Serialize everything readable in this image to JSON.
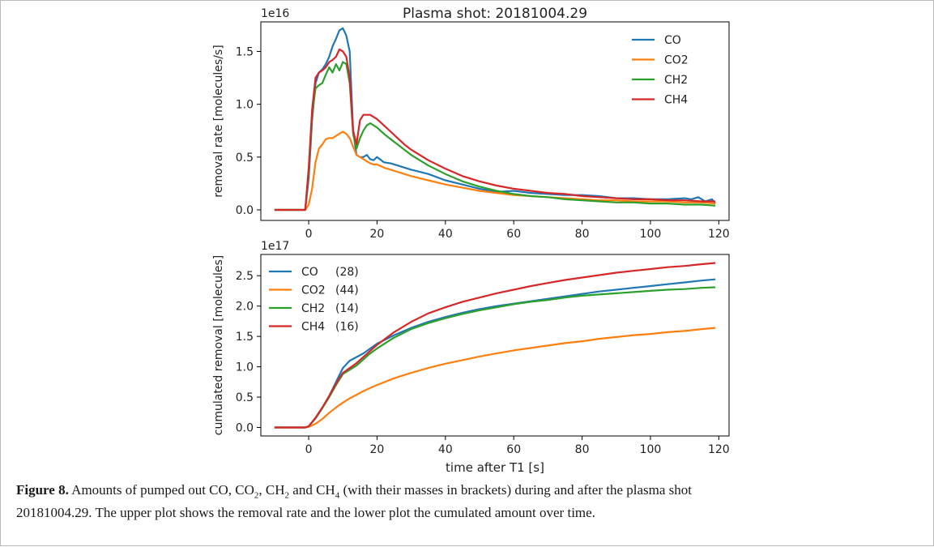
{
  "chart_data": [
    {
      "type": "line",
      "title": "Plasma shot: 20181004.29",
      "xlabel": "",
      "ylabel": "removal rate [molecules/s]",
      "y_offset_label": "1e16",
      "xlim": [
        -14,
        123
      ],
      "ylim": [
        -0.1,
        1.78
      ],
      "xticks": [
        0,
        20,
        40,
        60,
        80,
        100,
        120
      ],
      "yticks": [
        0.0,
        0.5,
        1.0,
        1.5
      ],
      "ytick_labels": [
        "0.0",
        "0.5",
        "1.0",
        "1.5"
      ],
      "legend_position": "top-right",
      "series": [
        {
          "name": "CO",
          "color": "#1f77b4",
          "x": [
            -10,
            -1,
            0,
            1,
            2,
            3,
            4,
            5,
            6,
            7,
            8,
            9,
            10,
            11,
            12,
            13,
            14,
            15,
            16,
            17,
            18,
            19,
            20,
            22,
            24,
            26,
            28,
            30,
            35,
            40,
            45,
            50,
            55,
            60,
            65,
            70,
            75,
            80,
            85,
            90,
            95,
            100,
            105,
            110,
            112,
            114,
            116,
            118,
            119
          ],
          "y": [
            0,
            0,
            0.3,
            0.85,
            1.2,
            1.3,
            1.33,
            1.38,
            1.45,
            1.55,
            1.62,
            1.7,
            1.72,
            1.65,
            1.5,
            0.75,
            0.52,
            0.5,
            0.5,
            0.52,
            0.48,
            0.47,
            0.5,
            0.45,
            0.44,
            0.42,
            0.4,
            0.38,
            0.34,
            0.28,
            0.24,
            0.2,
            0.17,
            0.18,
            0.16,
            0.15,
            0.14,
            0.14,
            0.13,
            0.11,
            0.11,
            0.1,
            0.1,
            0.11,
            0.1,
            0.12,
            0.08,
            0.1,
            0.06
          ]
        },
        {
          "name": "CO2",
          "color": "#ff7f0e",
          "x": [
            -10,
            -1,
            0,
            1,
            2,
            3,
            4,
            5,
            6,
            7,
            8,
            9,
            10,
            11,
            12,
            13,
            14,
            15,
            16,
            17,
            18,
            19,
            20,
            22,
            24,
            26,
            28,
            30,
            35,
            40,
            45,
            50,
            55,
            60,
            65,
            70,
            75,
            80,
            85,
            90,
            95,
            100,
            105,
            110,
            115,
            119
          ],
          "y": [
            0,
            0,
            0.05,
            0.2,
            0.45,
            0.58,
            0.62,
            0.67,
            0.68,
            0.68,
            0.7,
            0.72,
            0.74,
            0.72,
            0.68,
            0.6,
            0.52,
            0.5,
            0.48,
            0.46,
            0.44,
            0.43,
            0.43,
            0.4,
            0.38,
            0.36,
            0.34,
            0.32,
            0.28,
            0.24,
            0.21,
            0.18,
            0.16,
            0.14,
            0.13,
            0.12,
            0.11,
            0.1,
            0.09,
            0.09,
            0.08,
            0.08,
            0.08,
            0.07,
            0.07,
            0.06
          ]
        },
        {
          "name": "CH2",
          "color": "#2ca02c",
          "x": [
            -10,
            -1,
            0,
            1,
            2,
            3,
            4,
            5,
            6,
            7,
            8,
            9,
            10,
            11,
            12,
            13,
            14,
            15,
            16,
            17,
            18,
            19,
            20,
            22,
            24,
            26,
            28,
            30,
            35,
            40,
            45,
            50,
            55,
            60,
            65,
            70,
            75,
            80,
            85,
            90,
            95,
            100,
            105,
            110,
            115,
            119
          ],
          "y": [
            0,
            0,
            0.35,
            0.9,
            1.15,
            1.18,
            1.2,
            1.28,
            1.35,
            1.3,
            1.38,
            1.32,
            1.4,
            1.38,
            1.2,
            0.72,
            0.58,
            0.68,
            0.75,
            0.8,
            0.82,
            0.8,
            0.78,
            0.72,
            0.67,
            0.62,
            0.57,
            0.52,
            0.42,
            0.34,
            0.27,
            0.22,
            0.18,
            0.15,
            0.13,
            0.12,
            0.1,
            0.09,
            0.08,
            0.07,
            0.07,
            0.06,
            0.06,
            0.05,
            0.05,
            0.04
          ]
        },
        {
          "name": "CH4",
          "color": "#d62728",
          "x": [
            -10,
            -1,
            0,
            1,
            2,
            3,
            4,
            5,
            6,
            7,
            8,
            9,
            10,
            11,
            12,
            13,
            14,
            15,
            16,
            17,
            18,
            19,
            20,
            22,
            24,
            26,
            28,
            30,
            35,
            40,
            45,
            50,
            55,
            60,
            65,
            70,
            75,
            80,
            85,
            90,
            95,
            100,
            105,
            110,
            115,
            119
          ],
          "y": [
            0,
            0,
            0.4,
            0.95,
            1.25,
            1.3,
            1.32,
            1.35,
            1.4,
            1.42,
            1.45,
            1.52,
            1.5,
            1.45,
            1.25,
            0.75,
            0.62,
            0.85,
            0.9,
            0.9,
            0.9,
            0.88,
            0.86,
            0.8,
            0.74,
            0.68,
            0.62,
            0.57,
            0.47,
            0.39,
            0.32,
            0.27,
            0.23,
            0.2,
            0.18,
            0.16,
            0.15,
            0.13,
            0.12,
            0.11,
            0.1,
            0.1,
            0.09,
            0.09,
            0.08,
            0.08
          ]
        }
      ]
    },
    {
      "type": "line",
      "title": "",
      "xlabel": "time after T1 [s]",
      "ylabel": "cumulated removal [molecules]",
      "y_offset_label": "1e17",
      "xlim": [
        -14,
        123
      ],
      "ylim": [
        -0.14,
        2.85
      ],
      "xticks": [
        0,
        20,
        40,
        60,
        80,
        100,
        120
      ],
      "yticks": [
        0.0,
        0.5,
        1.0,
        1.5,
        2.0,
        2.5
      ],
      "ytick_labels": [
        "0.0",
        "0.5",
        "1.0",
        "1.5",
        "2.0",
        "2.5"
      ],
      "legend_position": "top-left",
      "series": [
        {
          "name": "CO",
          "mass_label": "(28)",
          "color": "#1f77b4",
          "x": [
            -10,
            -1,
            0,
            2,
            4,
            6,
            8,
            10,
            12,
            14,
            16,
            18,
            20,
            25,
            30,
            35,
            40,
            45,
            50,
            55,
            60,
            65,
            70,
            75,
            80,
            85,
            90,
            95,
            100,
            105,
            110,
            115,
            119
          ],
          "y": [
            0,
            0,
            0.02,
            0.15,
            0.32,
            0.52,
            0.75,
            0.98,
            1.1,
            1.16,
            1.22,
            1.3,
            1.38,
            1.52,
            1.64,
            1.74,
            1.82,
            1.89,
            1.95,
            2.0,
            2.04,
            2.08,
            2.12,
            2.16,
            2.2,
            2.24,
            2.27,
            2.3,
            2.33,
            2.36,
            2.39,
            2.42,
            2.44
          ]
        },
        {
          "name": "CO2",
          "mass_label": "(44)",
          "color": "#ff7f0e",
          "x": [
            -10,
            -1,
            0,
            2,
            4,
            6,
            8,
            10,
            12,
            14,
            16,
            18,
            20,
            25,
            30,
            35,
            40,
            45,
            50,
            55,
            60,
            65,
            70,
            75,
            80,
            85,
            90,
            95,
            100,
            105,
            110,
            115,
            119
          ],
          "y": [
            0,
            0,
            0.01,
            0.06,
            0.14,
            0.24,
            0.33,
            0.41,
            0.48,
            0.54,
            0.6,
            0.65,
            0.7,
            0.81,
            0.9,
            0.98,
            1.05,
            1.11,
            1.17,
            1.22,
            1.27,
            1.31,
            1.35,
            1.39,
            1.42,
            1.46,
            1.49,
            1.52,
            1.54,
            1.57,
            1.59,
            1.62,
            1.64
          ]
        },
        {
          "name": "CH2",
          "mass_label": "(14)",
          "color": "#2ca02c",
          "x": [
            -10,
            -1,
            0,
            2,
            4,
            6,
            8,
            10,
            12,
            14,
            16,
            18,
            20,
            25,
            30,
            35,
            40,
            45,
            50,
            55,
            60,
            65,
            70,
            75,
            80,
            85,
            90,
            95,
            100,
            105,
            110,
            115,
            119
          ],
          "y": [
            0,
            0,
            0.02,
            0.15,
            0.32,
            0.5,
            0.7,
            0.88,
            0.95,
            1.02,
            1.12,
            1.22,
            1.3,
            1.48,
            1.62,
            1.72,
            1.8,
            1.87,
            1.93,
            1.98,
            2.03,
            2.07,
            2.1,
            2.14,
            2.17,
            2.19,
            2.21,
            2.23,
            2.25,
            2.27,
            2.28,
            2.3,
            2.31
          ]
        },
        {
          "name": "CH4",
          "mass_label": "(16)",
          "color": "#d62728",
          "x": [
            -10,
            -1,
            0,
            2,
            4,
            6,
            8,
            10,
            12,
            14,
            16,
            18,
            20,
            25,
            30,
            35,
            40,
            45,
            50,
            55,
            60,
            65,
            70,
            75,
            80,
            85,
            90,
            95,
            100,
            105,
            110,
            115,
            119
          ],
          "y": [
            0,
            0,
            0.02,
            0.16,
            0.33,
            0.52,
            0.72,
            0.9,
            0.98,
            1.06,
            1.16,
            1.26,
            1.36,
            1.57,
            1.74,
            1.88,
            1.98,
            2.07,
            2.14,
            2.21,
            2.27,
            2.33,
            2.38,
            2.43,
            2.47,
            2.51,
            2.55,
            2.58,
            2.61,
            2.64,
            2.66,
            2.69,
            2.71
          ]
        }
      ]
    }
  ],
  "caption": {
    "label": "Figure 8.",
    "text_part1": " Amounts of pumped out CO, CO",
    "sub1": "2",
    "text_part2": ", CH",
    "sub2": "2",
    "text_part3": " and CH",
    "sub3": "4",
    "text_part4": " (with their masses in brackets) during and after the plasma shot",
    "line2": "20181004.29. The upper plot shows the removal rate and the lower plot the cumulated amount over time."
  }
}
